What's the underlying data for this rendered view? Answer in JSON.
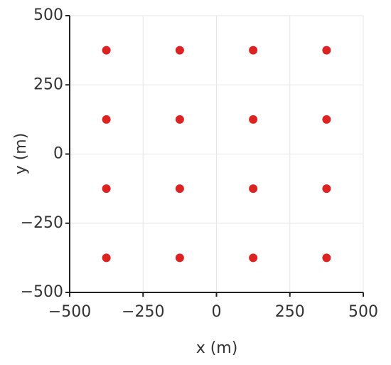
{
  "chart_data": {
    "type": "scatter",
    "xlabel": "x (m)",
    "ylabel": "y (m)",
    "x": [
      -375,
      -125,
      125,
      375,
      -375,
      -125,
      125,
      375,
      -375,
      -125,
      125,
      375,
      -375,
      -125,
      125,
      375
    ],
    "values": [
      375,
      375,
      375,
      375,
      125,
      125,
      125,
      125,
      -125,
      -125,
      -125,
      -125,
      -375,
      -375,
      -375,
      -375
    ],
    "color": "#dd2222",
    "xlim": [
      -500,
      500
    ],
    "ylim": [
      -500,
      500
    ],
    "xticks": [
      {
        "value": -500,
        "label": "−500"
      },
      {
        "value": -250,
        "label": "−250"
      },
      0,
      250,
      500
    ],
    "yticks": [
      {
        "value": -500,
        "label": "−500"
      },
      {
        "value": -250,
        "label": "−250"
      },
      0,
      250,
      500
    ],
    "grid": true
  }
}
